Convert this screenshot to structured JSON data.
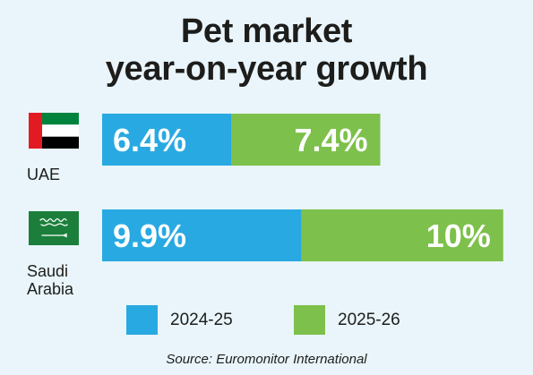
{
  "title": {
    "line1": "Pet market",
    "line2": "year-on-year growth"
  },
  "chart_data": {
    "type": "bar",
    "orientation": "horizontal",
    "stacked": true,
    "categories": [
      "UAE",
      "Saudi Arabia"
    ],
    "category_lines": [
      [
        "UAE"
      ],
      [
        "Saudi",
        "Arabia"
      ]
    ],
    "series": [
      {
        "name": "2024-25",
        "values": [
          6.4,
          9.9
        ],
        "labels": [
          "6.4%",
          "9.9%"
        ],
        "color": "#29a9e1"
      },
      {
        "name": "2025-26",
        "values": [
          7.4,
          10
        ],
        "labels": [
          "7.4%",
          "10%"
        ],
        "color": "#7dc04b"
      }
    ],
    "grid": false,
    "legend_position": "bottom"
  },
  "flags": [
    {
      "country": "UAE",
      "icon": "uae-flag-icon",
      "colors": {
        "red": "#e21b23",
        "green": "#00843d",
        "white": "#ffffff",
        "black": "#000000"
      }
    },
    {
      "country": "Saudi Arabia",
      "icon": "saudi-flag-icon",
      "colors": {
        "green": "#1b7f3b",
        "white": "#ffffff"
      }
    }
  ],
  "source": "Source: Euromonitor International"
}
